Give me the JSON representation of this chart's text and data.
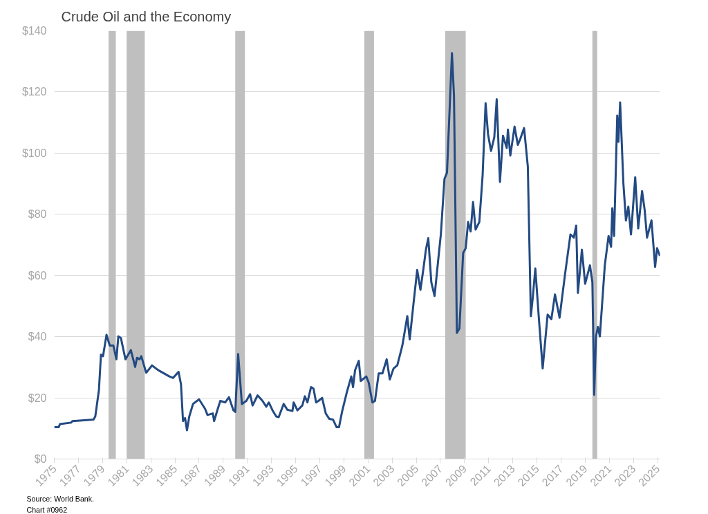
{
  "chart_data": {
    "type": "line",
    "title": "Crude Oil and the Economy",
    "annotations": [
      "Source: World Bank.",
      "Chart #0962"
    ],
    "xlim": [
      1975,
      2025.2
    ],
    "xticks": [
      1975,
      1977,
      1979,
      1981,
      1983,
      1985,
      1987,
      1989,
      1991,
      1993,
      1995,
      1997,
      1999,
      2001,
      2003,
      2005,
      2007,
      2009,
      2011,
      2013,
      2015,
      2017,
      2019,
      2021,
      2023,
      2025
    ],
    "ylim": [
      0,
      140
    ],
    "yticks": [
      {
        "value": 0,
        "label": "$0"
      },
      {
        "value": 20,
        "label": "$20"
      },
      {
        "value": 40,
        "label": "$40"
      },
      {
        "value": 60,
        "label": "$60"
      },
      {
        "value": 80,
        "label": "$80"
      },
      {
        "value": 100,
        "label": "$100"
      },
      {
        "value": 120,
        "label": "$120"
      },
      {
        "value": 140,
        "label": "$140"
      }
    ],
    "grid": "y",
    "marker": "none",
    "line_style": "solid",
    "bands": [
      {
        "axis": "x",
        "from": 1979.5,
        "to": 1980.1,
        "color": "#bfbfbf"
      },
      {
        "axis": "x",
        "from": 1981.0,
        "to": 1982.5,
        "color": "#bfbfbf"
      },
      {
        "axis": "x",
        "from": 1990.0,
        "to": 1990.8,
        "color": "#bfbfbf"
      },
      {
        "axis": "x",
        "from": 2000.7,
        "to": 2001.5,
        "color": "#bfbfbf"
      },
      {
        "axis": "x",
        "from": 2007.4,
        "to": 2009.1,
        "color": "#bfbfbf"
      },
      {
        "axis": "x",
        "from": 2019.6,
        "to": 2020.0,
        "color": "#bfbfbf"
      }
    ],
    "series": [
      {
        "color": "#234a82",
        "x": [
          1975,
          1975.37,
          1975.47,
          1976.4,
          1976.5,
          1978.25,
          1978.4,
          1978.56,
          1978.7,
          1978.87,
          1979.04,
          1979.33,
          1979.6,
          1979.9,
          1980.15,
          1980.31,
          1980.52,
          1980.9,
          1981.35,
          1981.7,
          1981.86,
          1982.07,
          1982.21,
          1982.62,
          1983.1,
          1983.6,
          1984.54,
          1984.85,
          1985.3,
          1985.5,
          1985.67,
          1985.84,
          1986.0,
          1986.19,
          1986.5,
          1987.0,
          1987.5,
          1987.7,
          1988.14,
          1988.25,
          1988.55,
          1988.76,
          1989.17,
          1989.48,
          1989.85,
          1990.0,
          1990.24,
          1990.55,
          1990.92,
          1991.23,
          1991.44,
          1991.85,
          1992.26,
          1992.57,
          1992.78,
          1993.09,
          1993.4,
          1993.6,
          1994.01,
          1994.32,
          1994.74,
          1994.84,
          1995.15,
          1995.56,
          1995.77,
          1995.98,
          1996.28,
          1996.49,
          1996.7,
          1996.9,
          1997.2,
          1997.5,
          1997.8,
          1998.1,
          1998.4,
          1998.6,
          1998.85,
          1999.26,
          1999.62,
          1999.76,
          1999.93,
          2000.24,
          2000.4,
          2000.86,
          2001.06,
          2001.37,
          2001.58,
          2001.89,
          2002.2,
          2002.55,
          2002.81,
          2003.12,
          2003.43,
          2003.85,
          2004.26,
          2004.46,
          2004.77,
          2005.08,
          2005.35,
          2005.6,
          2005.8,
          2006.0,
          2006.25,
          2006.52,
          2006.83,
          2007.04,
          2007.34,
          2007.55,
          2007.96,
          2008.13,
          2008.37,
          2008.58,
          2008.89,
          2009.1,
          2009.3,
          2009.51,
          2009.71,
          2009.92,
          2010.23,
          2010.5,
          2010.75,
          2010.95,
          2011.2,
          2011.47,
          2011.67,
          2011.94,
          2012.19,
          2012.5,
          2012.6,
          2012.8,
          2013.15,
          2013.42,
          2013.63,
          2013.94,
          2014.25,
          2014.5,
          2014.66,
          2014.87,
          2015.17,
          2015.48,
          2015.89,
          2016.2,
          2016.5,
          2016.88,
          2017.33,
          2017.78,
          2018.06,
          2018.26,
          2018.4,
          2018.73,
          2019.0,
          2019.4,
          2019.6,
          2019.75,
          2019.9,
          2020.06,
          2020.22,
          2020.63,
          2020.94,
          2021.15,
          2021.25,
          2021.4,
          2021.66,
          2021.76,
          2021.9,
          2022.17,
          2022.38,
          2022.58,
          2022.8,
          2023.15,
          2023.4,
          2023.72,
          2023.93,
          2024.13,
          2024.5,
          2024.8,
          2024.96,
          2025.2
        ],
        "values": [
          10.4,
          10.4,
          11.4,
          11.9,
          12.4,
          12.9,
          13.9,
          18.5,
          22.5,
          34.1,
          33.6,
          40.6,
          37.1,
          37.1,
          32.6,
          40.1,
          39.6,
          32.6,
          35.6,
          30.1,
          33.1,
          32.6,
          33.6,
          28.2,
          30.6,
          29.1,
          27.0,
          26.5,
          28.5,
          24.5,
          12.4,
          13.4,
          9.4,
          13.9,
          18.0,
          19.5,
          16.4,
          14.4,
          14.9,
          12.4,
          16.4,
          19.0,
          18.5,
          20.2,
          15.9,
          15.4,
          34.3,
          18.0,
          19.0,
          21.2,
          17.5,
          20.8,
          19.0,
          17.1,
          18.5,
          15.9,
          13.9,
          13.7,
          18.0,
          16.1,
          15.7,
          18.5,
          15.9,
          17.5,
          20.5,
          18.5,
          23.5,
          23.0,
          18.5,
          19.0,
          20.0,
          14.9,
          13.1,
          12.9,
          10.4,
          10.4,
          15.4,
          22.0,
          27.0,
          23.5,
          29.0,
          32.1,
          25.5,
          27.0,
          25.0,
          18.5,
          19.0,
          28.0,
          28.0,
          32.6,
          26.0,
          29.6,
          30.6,
          37.1,
          46.7,
          39.1,
          50.7,
          61.8,
          55.3,
          62.3,
          68.4,
          72.2,
          57.8,
          53.3,
          65.4,
          73.4,
          91.6,
          93.6,
          132.7,
          118.8,
          41.2,
          42.7,
          67.4,
          68.9,
          77.5,
          74.4,
          84.0,
          75.0,
          77.5,
          92.6,
          116.3,
          106.2,
          100.7,
          105.2,
          117.6,
          90.6,
          105.7,
          101.7,
          107.7,
          99.2,
          108.7,
          102.7,
          104.7,
          108.2,
          95.6,
          46.7,
          52.8,
          62.3,
          45.7,
          29.6,
          47.2,
          45.7,
          53.8,
          46.2,
          60.3,
          73.4,
          72.4,
          76.3,
          54.3,
          68.4,
          57.3,
          63.3,
          57.8,
          21.0,
          40.1,
          43.2,
          40.1,
          63.3,
          72.9,
          69.4,
          82.0,
          72.9,
          112.3,
          103.7,
          116.6,
          90.1,
          78.0,
          82.5,
          73.4,
          92.1,
          75.4,
          87.6,
          81.5,
          72.4,
          78.0,
          62.8,
          68.9,
          66.4
        ]
      }
    ]
  }
}
